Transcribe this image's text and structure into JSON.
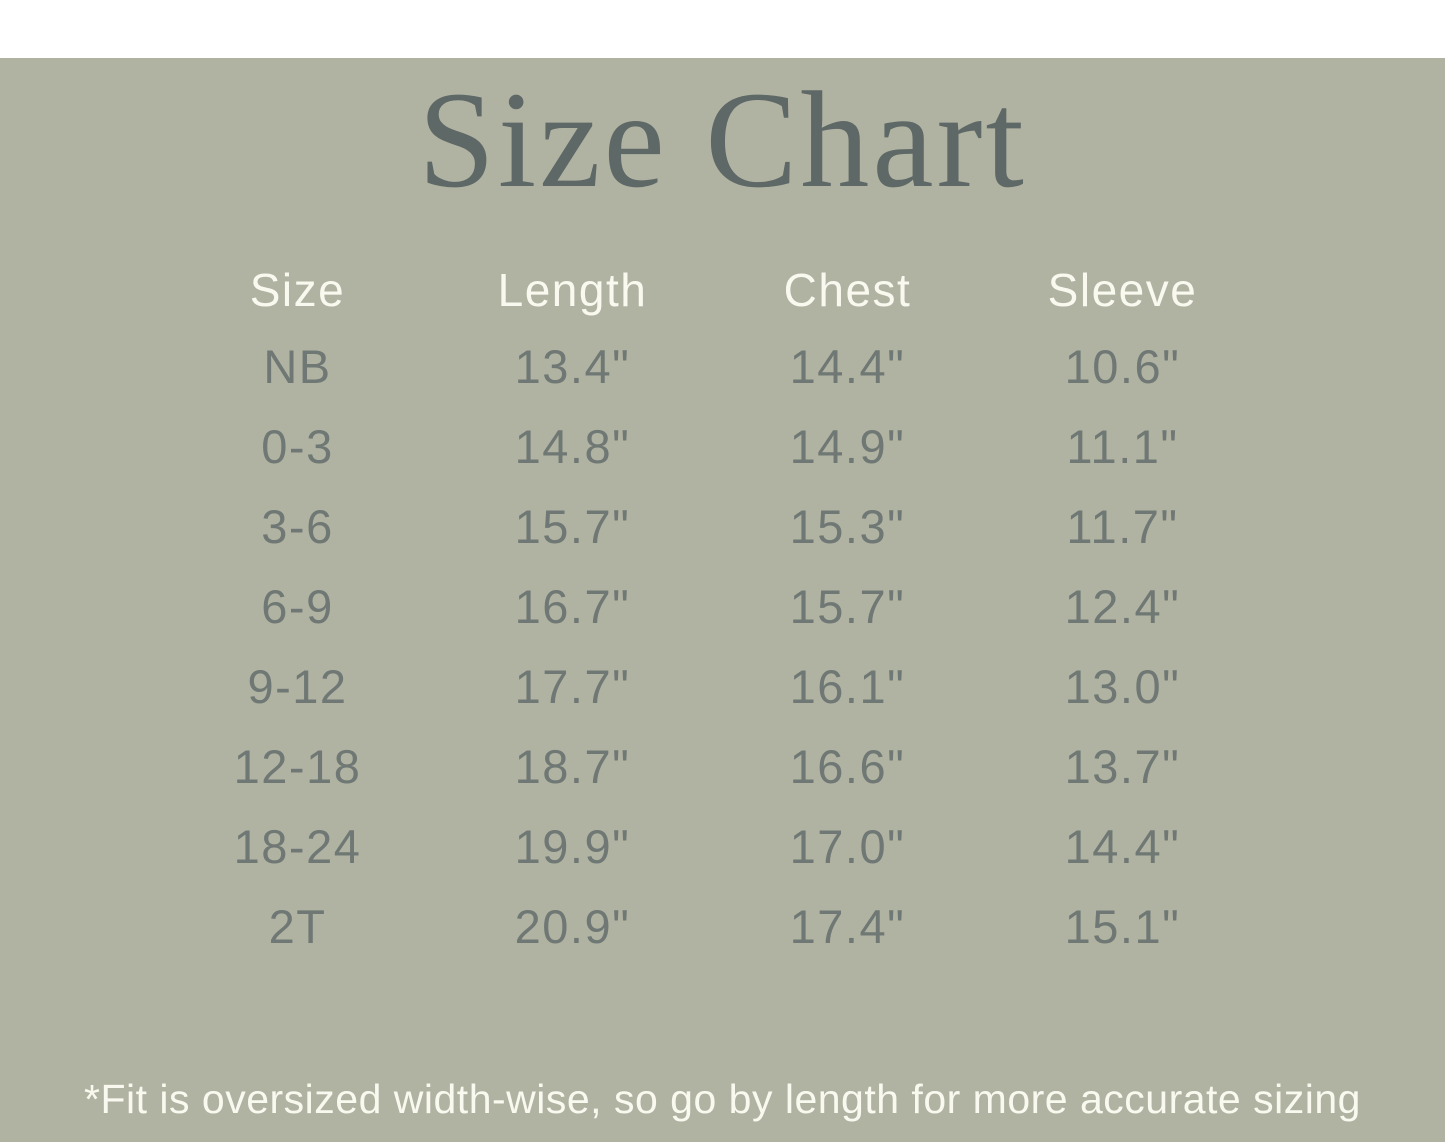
{
  "title": "Size Chart",
  "footnote": "*Fit is oversized width-wise, so go by length for more accurate sizing",
  "colors": {
    "background": "#b1b3a2",
    "title_text": "#5e6867",
    "cell_text": "#6f7874",
    "light_text": "#f9f9ef"
  },
  "chart_data": {
    "type": "table",
    "title": "Size Chart",
    "columns": [
      "Size",
      "Length",
      "Chest",
      "Sleeve"
    ],
    "rows": [
      [
        "NB",
        "13.4\"",
        "14.4\"",
        "10.6\""
      ],
      [
        "0-3",
        "14.8\"",
        "14.9\"",
        "11.1\""
      ],
      [
        "3-6",
        "15.7\"",
        "15.3\"",
        "11.7\""
      ],
      [
        "6-9",
        "16.7\"",
        "15.7\"",
        "12.4\""
      ],
      [
        "9-12",
        "17.7\"",
        "16.1\"",
        "13.0\""
      ],
      [
        "12-18",
        "18.7\"",
        "16.6\"",
        "13.7\""
      ],
      [
        "18-24",
        "19.9\"",
        "17.0\"",
        "14.4\""
      ],
      [
        "2T",
        "20.9\"",
        "17.4\"",
        "15.1\""
      ]
    ],
    "units": "inches",
    "footnote": "*Fit is oversized width-wise, so go by length for more accurate sizing"
  }
}
